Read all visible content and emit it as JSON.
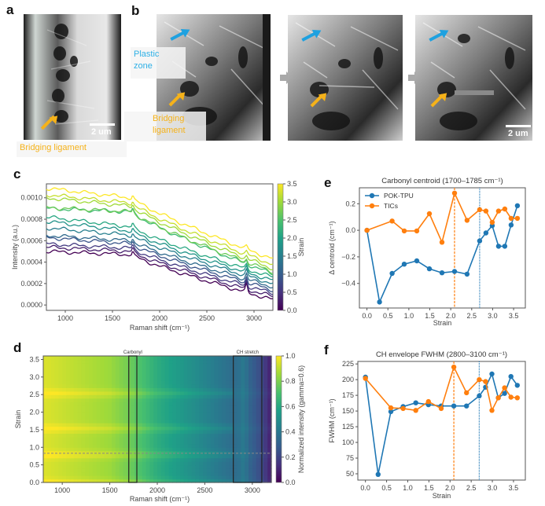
{
  "panels": {
    "a": {
      "letter": "a",
      "annotation": "Bridging ligament",
      "scale_bar": "2 um",
      "arrow_color": "#f5b21a"
    },
    "b": {
      "letter": "b",
      "plastic_zone_label": "Plastic zone",
      "plastic_zone_line1": "Plastic",
      "plastic_zone_line2": "zone",
      "bridging_line1": "Bridging",
      "bridging_line2": "ligament",
      "scale_bar": "2 um",
      "plastic_arrow_color": "#1ea1e0",
      "bridging_arrow_color": "#f5b21a",
      "frames": 3
    },
    "c": {
      "letter": "c"
    },
    "d": {
      "letter": "d"
    },
    "e": {
      "letter": "e"
    },
    "f": {
      "letter": "f"
    }
  },
  "chart_data": [
    {
      "id": "c",
      "type": "line",
      "title": "",
      "xlabel": "Raman shift (cm⁻¹)",
      "ylabel": "Intensity (a.u.)",
      "xlim": [
        800,
        3200
      ],
      "ylim": [
        -5e-05,
        0.00113
      ],
      "xticks": [
        1000,
        1500,
        2000,
        2500,
        3000
      ],
      "yticks": [
        0.0,
        0.0002,
        0.0004,
        0.0006,
        0.0008,
        0.001
      ],
      "ytick_labels": [
        "0.0000",
        "0.0002",
        "0.0004",
        "0.0006",
        "0.0008",
        "0.0010"
      ],
      "colorbar": {
        "label": "Strain",
        "range": [
          0.0,
          3.5
        ],
        "ticks": [
          "0.0",
          "0.5",
          "1.0",
          "1.5",
          "2.0",
          "2.5",
          "3.0",
          "3.5"
        ],
        "colormap": "viridis"
      },
      "series_note": "One spectrum per strain level, colored by strain; each is vertically offset",
      "series": [
        {
          "strain": 0.0,
          "start": 0.0005,
          "at1700": 0.00047,
          "at3200": 5e-05
        },
        {
          "strain": 0.3,
          "start": 0.00054,
          "at1700": 0.0005,
          "at3200": 8e-05
        },
        {
          "strain": 0.6,
          "start": 0.00057,
          "at1700": 0.00053,
          "at3200": 0.00011
        },
        {
          "strain": 0.9,
          "start": 0.00063,
          "at1700": 0.00057,
          "at3200": 0.00014
        },
        {
          "strain": 1.2,
          "start": 0.00065,
          "at1700": 0.0006,
          "at3200": 0.00017
        },
        {
          "strain": 1.5,
          "start": 0.00072,
          "at1700": 0.00065,
          "at3200": 0.0002
        },
        {
          "strain": 1.8,
          "start": 0.00078,
          "at1700": 0.00069,
          "at3200": 0.00023
        },
        {
          "strain": 2.1,
          "start": 0.00082,
          "at1700": 0.00073,
          "at3200": 0.00026
        },
        {
          "strain": 2.4,
          "start": 0.0009,
          "at1700": 0.00087,
          "at3200": 0.00029
        },
        {
          "strain": 2.7,
          "start": 0.00091,
          "at1700": 0.00087,
          "at3200": 0.00031
        },
        {
          "strain": 3.0,
          "start": 0.001,
          "at1700": 0.00092,
          "at3200": 0.00034
        },
        {
          "strain": 3.2,
          "start": 0.00103,
          "at1700": 0.00095,
          "at3200": 0.00038
        },
        {
          "strain": 3.5,
          "start": 0.00109,
          "at1700": 0.001,
          "at3200": 0.00043
        }
      ]
    },
    {
      "id": "d",
      "type": "heatmap",
      "xlabel": "Raman shift (cm⁻¹)",
      "ylabel": "Strain",
      "xlim": [
        800,
        3200
      ],
      "ylim": [
        0.0,
        3.6
      ],
      "xticks": [
        1000,
        1500,
        2000,
        2500,
        3000
      ],
      "yticks": [
        0.0,
        0.5,
        1.0,
        1.5,
        2.0,
        2.5,
        3.0,
        3.5
      ],
      "ytick_labels": [
        "0.0",
        "0.5",
        "1.0",
        "1.5",
        "2.0",
        "2.5",
        "3.0",
        "3.5"
      ],
      "colorbar": {
        "label": "Normalized intensity (gamma=0.6)",
        "range": [
          0.0,
          1.0
        ],
        "ticks": [
          "0.0",
          "0.2",
          "0.4",
          "0.6",
          "0.8",
          "1.0"
        ],
        "colormap": "viridis"
      },
      "regions": [
        {
          "label": "Carbonyl",
          "x_range": [
            1700,
            1785
          ]
        },
        {
          "label": "CH stretch",
          "x_range": [
            2800,
            3100
          ]
        }
      ],
      "hline_strain": 0.83,
      "bright_strain_bands": [
        0.0,
        0.8,
        1.55,
        2.55
      ],
      "intensity_profile": {
        "x": [
          800,
          1000,
          1500,
          1700,
          2000,
          2500,
          2800,
          2900,
          3100,
          3200
        ],
        "value": [
          0.95,
          0.92,
          0.85,
          0.78,
          0.62,
          0.45,
          0.35,
          0.38,
          0.22,
          0.08
        ]
      }
    },
    {
      "id": "e",
      "type": "line",
      "title": "Carbonyl centroid (1700–1785 cm⁻¹)",
      "xlabel": "Strain",
      "ylabel": "Δ centroid (cm⁻¹)",
      "xlim": [
        -0.18,
        3.78
      ],
      "ylim": [
        -0.585,
        0.32
      ],
      "xticks": [
        0.0,
        0.5,
        1.0,
        1.5,
        2.0,
        2.5,
        3.0,
        3.5
      ],
      "xtick_labels": [
        "0.0",
        "0.5",
        "1.0",
        "1.5",
        "2.0",
        "2.5",
        "3.0",
        "3.5"
      ],
      "yticks": [
        -0.4,
        -0.2,
        0.0,
        0.2
      ],
      "ytick_labels": [
        "−0.4",
        "−0.2",
        "0.0",
        "0.2"
      ],
      "legend": "top-left",
      "vlines": [
        {
          "x": 2.09,
          "color": "#ff7f0e",
          "style": "dashed"
        },
        {
          "x": 2.69,
          "color": "#1f77b4",
          "style": "dotted"
        }
      ],
      "series": [
        {
          "name": "POK-TPU",
          "color": "#1f77b4",
          "x": [
            0.0,
            0.3,
            0.6,
            0.89,
            1.19,
            1.49,
            1.79,
            2.09,
            2.39,
            2.69,
            2.84,
            2.99,
            3.14,
            3.29,
            3.44,
            3.59
          ],
          "y": [
            0.0,
            -0.54,
            -0.325,
            -0.255,
            -0.23,
            -0.29,
            -0.32,
            -0.31,
            -0.33,
            -0.08,
            -0.02,
            0.035,
            -0.12,
            -0.12,
            0.04,
            0.185
          ]
        },
        {
          "name": "TICs",
          "color": "#ff7f0e",
          "x": [
            0.0,
            0.6,
            0.89,
            1.19,
            1.49,
            1.79,
            2.09,
            2.39,
            2.69,
            2.84,
            2.99,
            3.14,
            3.29,
            3.44,
            3.59
          ],
          "y": [
            0.0,
            0.07,
            -0.005,
            -0.005,
            0.125,
            -0.09,
            0.28,
            0.075,
            0.155,
            0.145,
            0.06,
            0.145,
            0.16,
            0.09,
            0.09
          ]
        }
      ]
    },
    {
      "id": "f",
      "type": "line",
      "title": "CH envelope FWHM (2800–3100 cm⁻¹)",
      "xlabel": "Strain",
      "ylabel": "FWHM (cm⁻¹)",
      "xlim": [
        -0.18,
        3.78
      ],
      "ylim": [
        40,
        229
      ],
      "xticks": [
        0.0,
        0.5,
        1.0,
        1.5,
        2.0,
        2.5,
        3.0,
        3.5
      ],
      "xtick_labels": [
        "0.0",
        "0.5",
        "1.0",
        "1.5",
        "2.0",
        "2.5",
        "3.0",
        "3.5"
      ],
      "yticks": [
        50,
        75,
        100,
        125,
        150,
        175,
        200,
        225
      ],
      "ytick_labels": [
        "50",
        "75",
        "100",
        "125",
        "150",
        "175",
        "200",
        "225"
      ],
      "vlines": [
        {
          "x": 2.09,
          "color": "#ff7f0e",
          "style": "dashed"
        },
        {
          "x": 2.69,
          "color": "#1f77b4",
          "style": "dotted"
        }
      ],
      "series": [
        {
          "name": "POK-TPU",
          "color": "#1f77b4",
          "x": [
            0.0,
            0.3,
            0.6,
            0.89,
            1.19,
            1.49,
            1.79,
            2.09,
            2.39,
            2.69,
            2.84,
            2.99,
            3.14,
            3.29,
            3.44,
            3.59
          ],
          "y": [
            204,
            49,
            149,
            157,
            163,
            160,
            158,
            158,
            158,
            174,
            188,
            209,
            171,
            178,
            205,
            191
          ]
        },
        {
          "name": "TICs",
          "color": "#ff7f0e",
          "x": [
            0.0,
            0.6,
            0.89,
            1.19,
            1.49,
            1.79,
            2.09,
            2.39,
            2.69,
            2.84,
            2.99,
            3.14,
            3.29,
            3.44,
            3.59
          ],
          "y": [
            202,
            155,
            154,
            151,
            165,
            154,
            220,
            179,
            200,
            197,
            151,
            171,
            187,
            172,
            171
          ]
        }
      ]
    }
  ]
}
